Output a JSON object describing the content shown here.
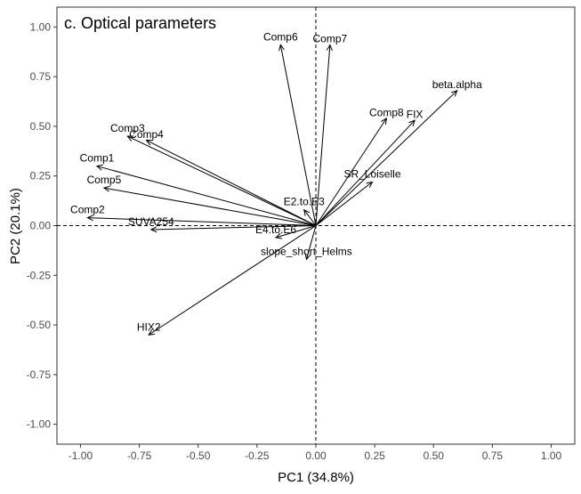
{
  "chart_data": {
    "type": "scatter",
    "title": "c. Optical parameters",
    "xlabel": "PC1 (34.8%)",
    "ylabel": "PC2 (20.1%)",
    "xlim": [
      -1.1,
      1.1
    ],
    "ylim": [
      -1.1,
      1.1
    ],
    "x_ticks": [
      "-1.00",
      "-0.75",
      "-0.50",
      "-0.25",
      "0.00",
      "0.25",
      "0.50",
      "0.75",
      "1.00"
    ],
    "y_ticks": [
      "-1.00",
      "-0.75",
      "-0.50",
      "-0.25",
      "0.00",
      "0.25",
      "0.50",
      "0.75",
      "1.00"
    ],
    "grid": false,
    "reference_lines": {
      "x": 0,
      "y": 0,
      "style": "dashed"
    },
    "vectors": [
      {
        "label": "Comp6",
        "x": -0.15,
        "y": 0.91,
        "label_x": -0.15,
        "label_y": 0.95
      },
      {
        "label": "Comp7",
        "x": 0.06,
        "y": 0.91,
        "label_x": 0.06,
        "label_y": 0.94
      },
      {
        "label": "beta.alpha",
        "x": 0.6,
        "y": 0.68,
        "label_x": 0.6,
        "label_y": 0.71
      },
      {
        "label": "Comp8",
        "x": 0.3,
        "y": 0.54,
        "label_x": 0.3,
        "label_y": 0.57
      },
      {
        "label": "FIX",
        "x": 0.42,
        "y": 0.53,
        "label_x": 0.42,
        "label_y": 0.56
      },
      {
        "label": "Comp3",
        "x": -0.8,
        "y": 0.45,
        "label_x": -0.8,
        "label_y": 0.49
      },
      {
        "label": "Comp4",
        "x": -0.72,
        "y": 0.43,
        "label_x": -0.72,
        "label_y": 0.46
      },
      {
        "label": "Comp1",
        "x": -0.93,
        "y": 0.3,
        "label_x": -0.93,
        "label_y": 0.34
      },
      {
        "label": "Comp5",
        "x": -0.9,
        "y": 0.19,
        "label_x": -0.9,
        "label_y": 0.23
      },
      {
        "label": "SR_Loiselle",
        "x": 0.24,
        "y": 0.22,
        "label_x": 0.24,
        "label_y": 0.26
      },
      {
        "label": "E2.to.E3",
        "x": -0.05,
        "y": 0.08,
        "label_x": -0.05,
        "label_y": 0.12
      },
      {
        "label": "Comp2",
        "x": -0.97,
        "y": 0.04,
        "label_x": -0.97,
        "label_y": 0.08
      },
      {
        "label": "SUVA254",
        "x": -0.7,
        "y": -0.02,
        "label_x": -0.7,
        "label_y": 0.02
      },
      {
        "label": "E4.to.E6",
        "x": -0.17,
        "y": -0.06,
        "label_x": -0.17,
        "label_y": -0.02
      },
      {
        "label": "slope_short_Helms",
        "x": -0.04,
        "y": -0.17,
        "label_x": -0.04,
        "label_y": -0.13
      },
      {
        "label": "HIX2",
        "x": -0.71,
        "y": -0.55,
        "label_x": -0.71,
        "label_y": -0.51
      }
    ]
  }
}
